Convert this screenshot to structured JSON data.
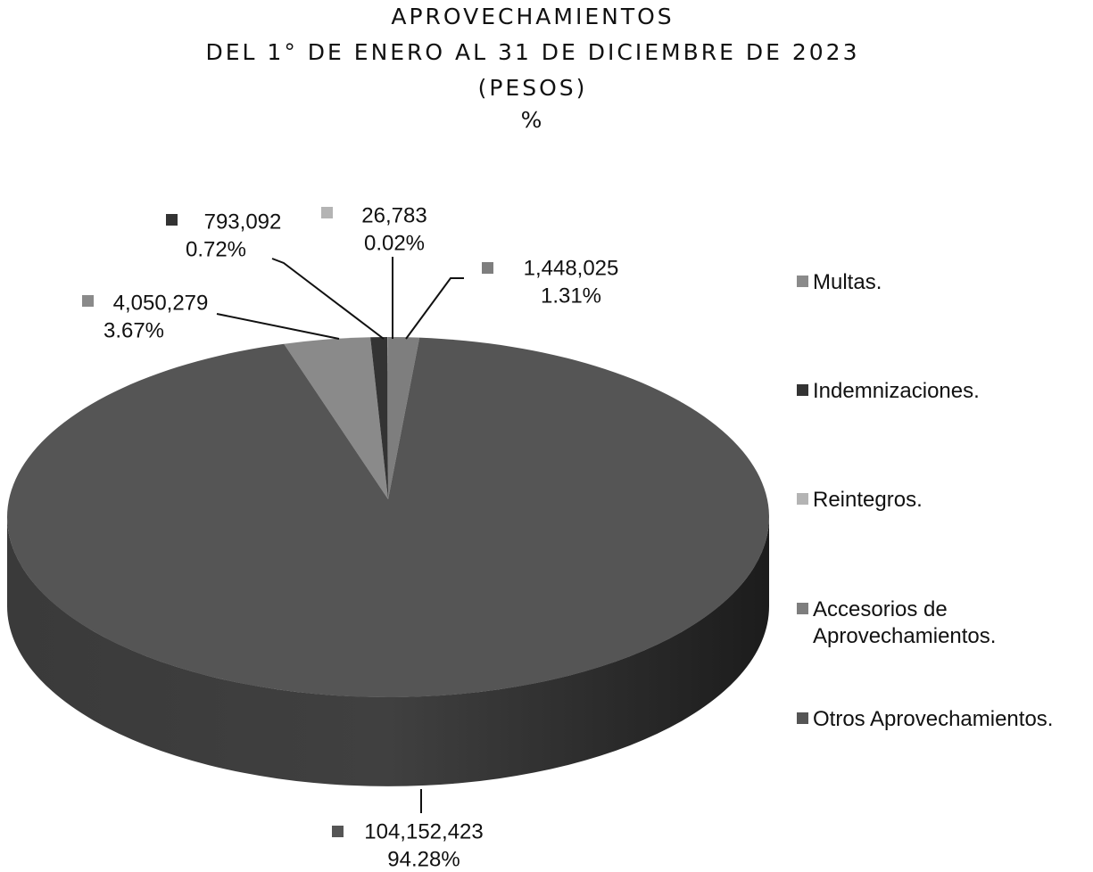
{
  "chart_data": {
    "type": "pie3d",
    "title_lines": [
      "APROVECHAMIENTOS",
      "DEL 1° DE ENERO AL 31 DE DICIEMBRE DE 2023",
      "(PESOS)",
      "%"
    ],
    "categories": [
      "Multas.",
      "Indemnizaciones.",
      "Reintegros.",
      "Accesorios de Aprovechamientos.",
      "Otros Aprovechamientos."
    ],
    "values": [
      4050279,
      793092,
      26783,
      1448025,
      104152423
    ],
    "value_labels": [
      "4,050,279",
      "793,092",
      "26,783",
      "1,448,025",
      "104,152,423"
    ],
    "percentages": [
      3.67,
      0.72,
      0.02,
      1.31,
      94.28
    ],
    "percentage_labels": [
      "3.67%",
      "0.72%",
      "0.02%",
      "1.31%",
      "94.28%"
    ],
    "colors": [
      "#8a8a8a",
      "#333333",
      "#b4b4b4",
      "#7e7e7e",
      "#555555"
    ],
    "legend": "right"
  }
}
